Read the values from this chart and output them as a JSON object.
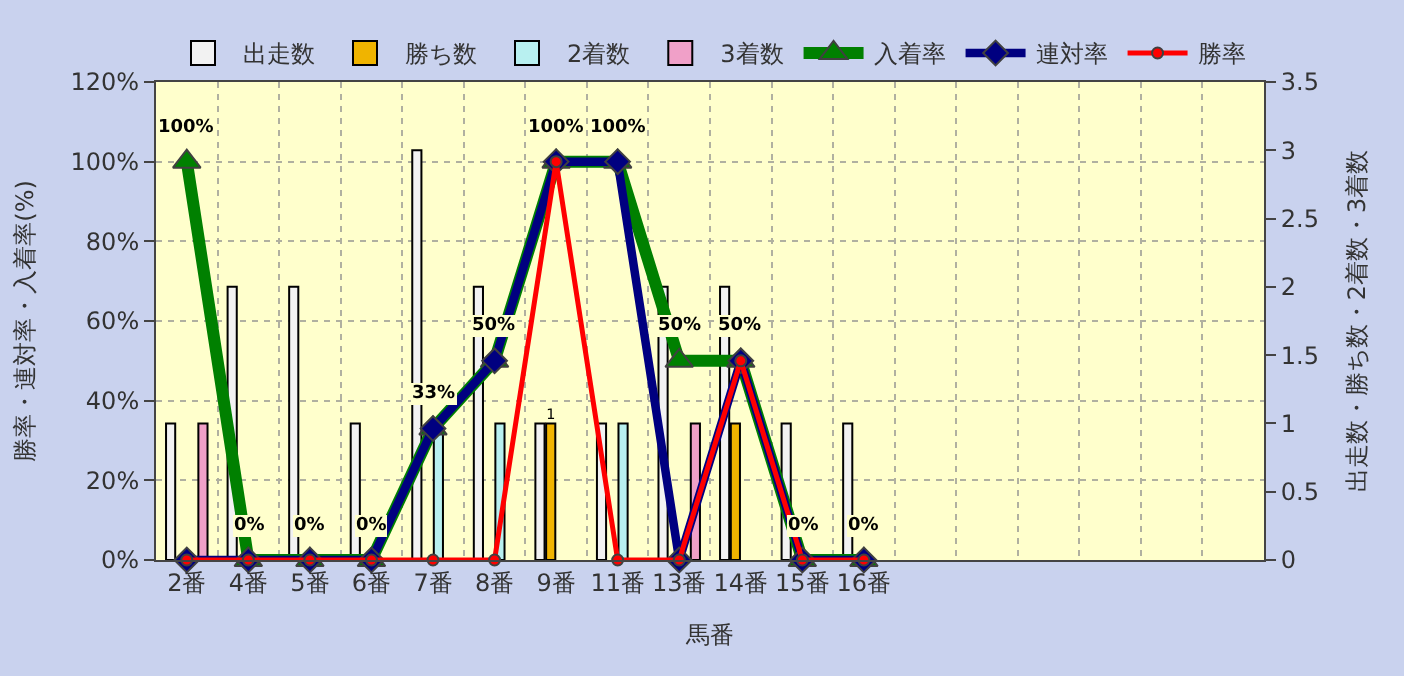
{
  "chart_data": {
    "type": "bar",
    "xlabel": "馬番",
    "ylabel": "勝率・連対率・入着率(%)",
    "y2label": "出走数・勝ち数・2着数・3着数",
    "categories": [
      "2番",
      "4番",
      "5番",
      "6番",
      "7番",
      "8番",
      "9番",
      "11番",
      "13番",
      "14番",
      "15番",
      "16番",
      null,
      null,
      null,
      null,
      null,
      null
    ],
    "series": [
      {
        "name": "出走数",
        "axis": "y2",
        "color": "#f2f2f2",
        "values": [
          1,
          2,
          2,
          1,
          3,
          2,
          1,
          1,
          2,
          2,
          1,
          1,
          null,
          null,
          null,
          null,
          null,
          null
        ]
      },
      {
        "name": "勝ち数",
        "axis": "y2",
        "color": "#f0b400",
        "values": [
          null,
          null,
          null,
          null,
          null,
          null,
          1,
          null,
          null,
          1,
          null,
          null,
          null,
          null,
          null,
          null,
          null,
          null
        ],
        "value_labels": [
          null,
          null,
          null,
          null,
          null,
          null,
          "1",
          null,
          null,
          null,
          null,
          null,
          null,
          null,
          null,
          null,
          null,
          null
        ]
      },
      {
        "name": "2着数",
        "axis": "y2",
        "color": "#b8f0f0",
        "values": [
          null,
          null,
          null,
          null,
          1,
          1,
          null,
          1,
          null,
          null,
          null,
          null,
          null,
          null,
          null,
          null,
          null,
          null
        ]
      },
      {
        "name": "3着数",
        "axis": "y2",
        "color": "#f0a0c8",
        "values": [
          1,
          null,
          null,
          null,
          null,
          null,
          null,
          null,
          1,
          null,
          null,
          null,
          null,
          null,
          null,
          null,
          null,
          null
        ]
      },
      {
        "name": "入着率",
        "type": "line",
        "axis": "y",
        "color": "#008000",
        "marker": "triangle",
        "values": [
          100,
          0,
          0,
          0,
          33,
          50,
          100,
          100,
          50,
          50,
          0,
          0,
          null,
          null,
          null,
          null,
          null,
          null
        ],
        "value_labels": [
          "100%",
          "0%",
          "0%",
          "0%",
          "33%",
          "50%",
          "100%",
          "100%",
          "50%",
          "50%",
          "0%",
          "0%",
          null,
          null,
          null,
          null,
          null,
          null
        ]
      },
      {
        "name": "連対率",
        "type": "line",
        "axis": "y",
        "color": "#000080",
        "marker": "diamond",
        "values": [
          0,
          0,
          0,
          0,
          33,
          50,
          100,
          100,
          0,
          50,
          0,
          0,
          null,
          null,
          null,
          null,
          null,
          null
        ]
      },
      {
        "name": "勝率",
        "type": "line",
        "axis": "y",
        "color": "#ff0000",
        "marker": "circle",
        "values": [
          0,
          0,
          0,
          0,
          0,
          0,
          100,
          0,
          0,
          50,
          0,
          0,
          null,
          null,
          null,
          null,
          null,
          null
        ]
      }
    ],
    "ylim": [
      0,
      120
    ],
    "yticks": [
      {
        "value": 0,
        "label": "0%"
      },
      {
        "value": 20,
        "label": "20%"
      },
      {
        "value": 40,
        "label": "40%"
      },
      {
        "value": 60,
        "label": "60%"
      },
      {
        "value": 80,
        "label": "80%"
      },
      {
        "value": 100,
        "label": "100%"
      },
      {
        "value": 120,
        "label": "120%"
      }
    ],
    "y2lim": [
      0,
      3.5
    ],
    "y2ticks": [
      0,
      0.5,
      1,
      1.5,
      2,
      2.5,
      3,
      3.5
    ],
    "grid": true,
    "legend": "top"
  }
}
